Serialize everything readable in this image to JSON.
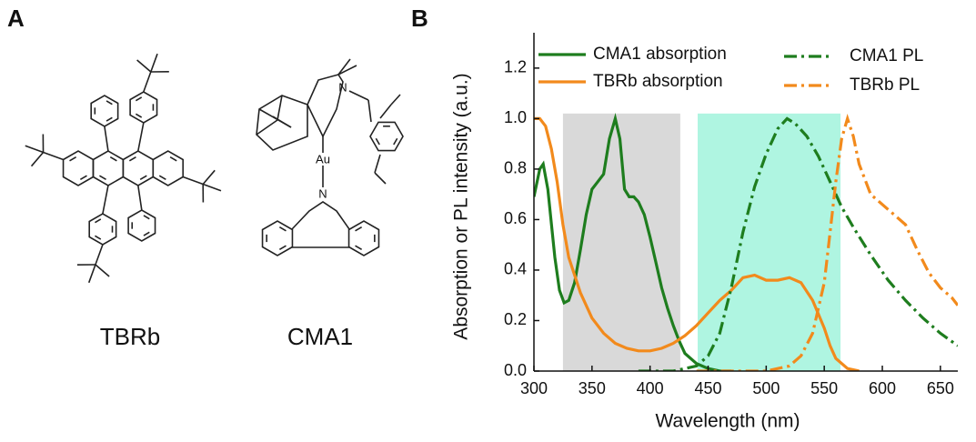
{
  "panels": {
    "a": "A",
    "b": "B"
  },
  "structures": [
    {
      "name": "TBRb"
    },
    {
      "name": "CMA1",
      "atoms": [
        "Au",
        "N",
        "N"
      ]
    }
  ],
  "chart_data": {
    "type": "line",
    "x_label": "Wavelength (nm)",
    "y_label": "Absorption or PL intensity (a.u.)",
    "xlim": [
      300,
      665
    ],
    "xticks": [
      300,
      350,
      400,
      450,
      500,
      550,
      600,
      650
    ],
    "ylim": [
      0,
      1.34
    ],
    "yticks": [
      {
        "value": 0,
        "label": "0.0"
      },
      0.2,
      0.4,
      0.6,
      0.8,
      {
        "value": 1,
        "label": "1.0"
      },
      1.2
    ],
    "spans": [
      {
        "xmin": 325,
        "xmax": 426,
        "ymax": 1.02,
        "color": "#d9d9d9"
      },
      {
        "xmin": 441,
        "xmax": 564,
        "ymax": 1.02,
        "color": "#aff5e1"
      }
    ],
    "series": [
      {
        "name": "CMA1 absorption",
        "color": "#1e7d1e",
        "linestyle": "solid",
        "x": [
          300,
          305,
          308,
          312,
          318,
          322,
          326,
          330,
          335,
          340,
          345,
          350,
          355,
          360,
          365,
          370,
          374,
          378,
          382,
          386,
          390,
          395,
          400,
          405,
          410,
          415,
          420,
          425,
          430,
          440,
          450,
          460,
          470
        ],
        "values": [
          0.69,
          0.8,
          0.82,
          0.72,
          0.45,
          0.32,
          0.27,
          0.28,
          0.35,
          0.48,
          0.62,
          0.72,
          0.75,
          0.78,
          0.92,
          1.0,
          0.92,
          0.72,
          0.69,
          0.69,
          0.67,
          0.62,
          0.53,
          0.43,
          0.33,
          0.25,
          0.18,
          0.12,
          0.07,
          0.03,
          0.01,
          0.0,
          0.0
        ]
      },
      {
        "name": "TBRb absorption",
        "color": "#f28a1c",
        "linestyle": "solid",
        "x": [
          300,
          305,
          310,
          315,
          320,
          325,
          330,
          340,
          350,
          360,
          370,
          380,
          390,
          400,
          410,
          420,
          430,
          440,
          450,
          460,
          470,
          480,
          490,
          500,
          510,
          520,
          530,
          540,
          550,
          555,
          560,
          570,
          580
        ],
        "values": [
          1.0,
          1.0,
          0.97,
          0.88,
          0.75,
          0.58,
          0.45,
          0.31,
          0.21,
          0.15,
          0.11,
          0.09,
          0.08,
          0.08,
          0.09,
          0.11,
          0.14,
          0.18,
          0.23,
          0.28,
          0.32,
          0.37,
          0.38,
          0.36,
          0.36,
          0.37,
          0.35,
          0.28,
          0.17,
          0.1,
          0.05,
          0.01,
          0.0
        ]
      },
      {
        "name": "CMA1 PL",
        "color": "#1e7d1e",
        "linestyle": "dashdot",
        "x": [
          390,
          420,
          440,
          450,
          460,
          470,
          480,
          490,
          500,
          510,
          518,
          525,
          535,
          545,
          555,
          565,
          575,
          590,
          605,
          620,
          635,
          650,
          665
        ],
        "values": [
          0.0,
          0.0,
          0.02,
          0.06,
          0.15,
          0.33,
          0.55,
          0.73,
          0.86,
          0.96,
          1.0,
          0.98,
          0.93,
          0.85,
          0.75,
          0.65,
          0.57,
          0.46,
          0.36,
          0.28,
          0.21,
          0.15,
          0.1
        ]
      },
      {
        "name": "TBRb PL",
        "color": "#f28a1c",
        "linestyle": "dashdot",
        "x": [
          440,
          480,
          500,
          520,
          530,
          540,
          550,
          555,
          560,
          565,
          570,
          575,
          580,
          590,
          600,
          610,
          620,
          630,
          640,
          650,
          660,
          665
        ],
        "values": [
          0.0,
          0.0,
          0.0,
          0.02,
          0.06,
          0.15,
          0.35,
          0.55,
          0.75,
          0.92,
          1.0,
          0.93,
          0.82,
          0.7,
          0.66,
          0.62,
          0.58,
          0.48,
          0.39,
          0.33,
          0.29,
          0.26
        ]
      }
    ]
  }
}
